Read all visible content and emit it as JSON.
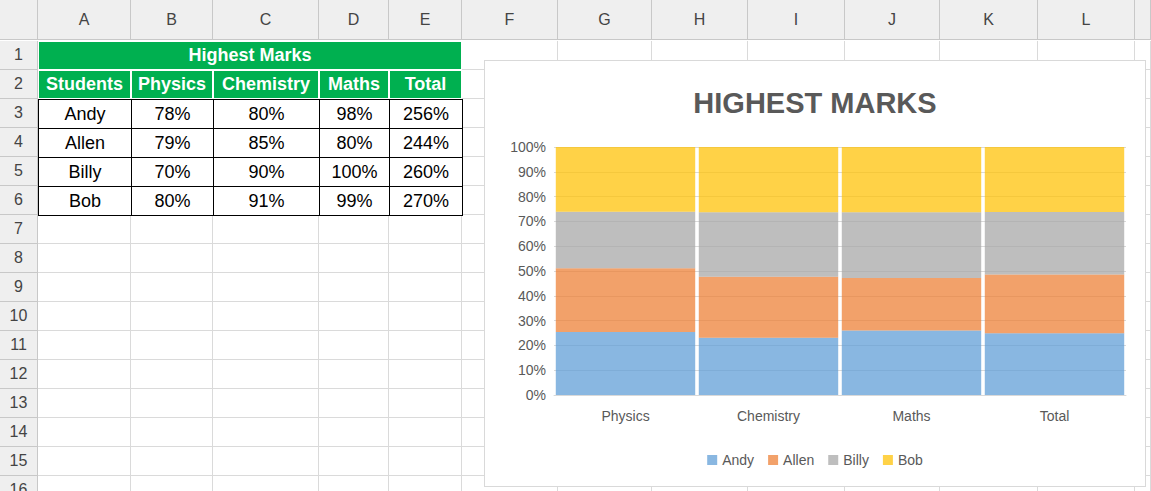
{
  "sheet": {
    "columns": [
      "A",
      "B",
      "C",
      "D",
      "E",
      "F",
      "G",
      "H",
      "I",
      "J",
      "K",
      "L"
    ],
    "rows": [
      1,
      2,
      3,
      4,
      5,
      6,
      7,
      8,
      9,
      10,
      11,
      12,
      13,
      14,
      15,
      16
    ]
  },
  "table": {
    "title": "Highest Marks",
    "header": [
      "Students",
      "Physics",
      "Chemistry",
      "Maths",
      "Total"
    ],
    "rows": [
      [
        "Andy",
        "78%",
        "80%",
        "98%",
        "256%"
      ],
      [
        "Allen",
        "79%",
        "85%",
        "80%",
        "244%"
      ],
      [
        "Billy",
        "70%",
        "90%",
        "100%",
        "260%"
      ],
      [
        "Bob",
        "80%",
        "91%",
        "99%",
        "270%"
      ]
    ]
  },
  "chart_data": {
    "type": "bar",
    "title": "HIGHEST MARKS",
    "stacked": true,
    "grid": true,
    "legend": "bottom",
    "categories": [
      "Physics",
      "Chemistry",
      "Maths",
      "Total"
    ],
    "series": [
      {
        "name": "Andy",
        "color": "#5b9bd5",
        "values": [
          25.4,
          23.1,
          26.0,
          24.9
        ]
      },
      {
        "name": "Allen",
        "color": "#ed7d31",
        "values": [
          25.7,
          24.6,
          21.2,
          23.7
        ]
      },
      {
        "name": "Billy",
        "color": "#a5a5a5",
        "values": [
          22.8,
          26.0,
          26.5,
          25.2
        ]
      },
      {
        "name": "Bob",
        "color": "#ffc000",
        "values": [
          26.1,
          26.3,
          26.3,
          26.2
        ]
      }
    ],
    "ylim": [
      0,
      100
    ],
    "yticks": [
      {
        "value": 0,
        "label": "0%"
      },
      {
        "value": 10,
        "label": "10%"
      },
      {
        "value": 20,
        "label": "20%"
      },
      {
        "value": 30,
        "label": "30%"
      },
      {
        "value": 40,
        "label": "40%"
      },
      {
        "value": 50,
        "label": "50%"
      },
      {
        "value": 60,
        "label": "60%"
      },
      {
        "value": 70,
        "label": "70%"
      },
      {
        "value": 80,
        "label": "80%"
      },
      {
        "value": 90,
        "label": "90%"
      },
      {
        "value": 100,
        "label": "100%"
      }
    ]
  }
}
